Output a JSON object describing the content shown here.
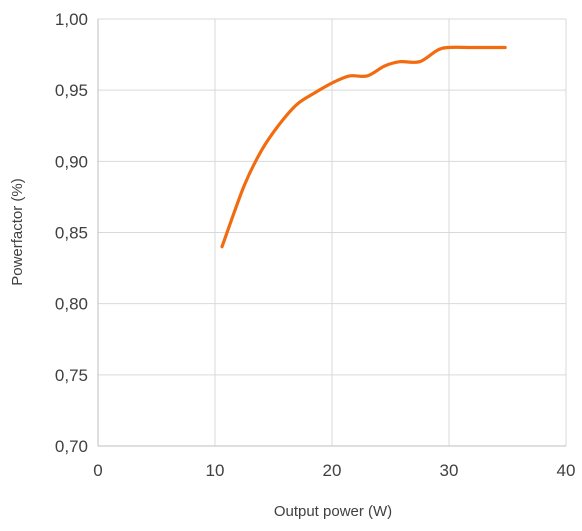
{
  "chart_data": {
    "type": "line",
    "title": "",
    "xlabel": "Output power  (W)",
    "ylabel": "Powerfactor (%)",
    "xlim": [
      0,
      40
    ],
    "ylim": [
      0.7,
      1.0
    ],
    "x_ticks": [
      0,
      10,
      20,
      30,
      40
    ],
    "x_tick_labels": [
      "0",
      "10",
      "20",
      "30",
      "40"
    ],
    "y_ticks": [
      0.7,
      0.75,
      0.8,
      0.85,
      0.9,
      0.95,
      1.0
    ],
    "y_tick_labels": [
      "0,70",
      "0,75",
      "0,80",
      "0,85",
      "0,90",
      "0,95",
      "1,00"
    ],
    "grid": true,
    "legend": "none",
    "series": [
      {
        "color": "#f26b0f",
        "x": [
          10.6,
          12.5,
          14.0,
          15.5,
          17.0,
          18.5,
          20.0,
          21.5,
          23.0,
          24.5,
          25.8,
          27.5,
          29.0,
          30.0,
          32.0,
          34.8
        ],
        "y": [
          0.84,
          0.883,
          0.908,
          0.926,
          0.94,
          0.948,
          0.955,
          0.96,
          0.96,
          0.967,
          0.97,
          0.97,
          0.978,
          0.98,
          0.98,
          0.98
        ]
      }
    ]
  }
}
